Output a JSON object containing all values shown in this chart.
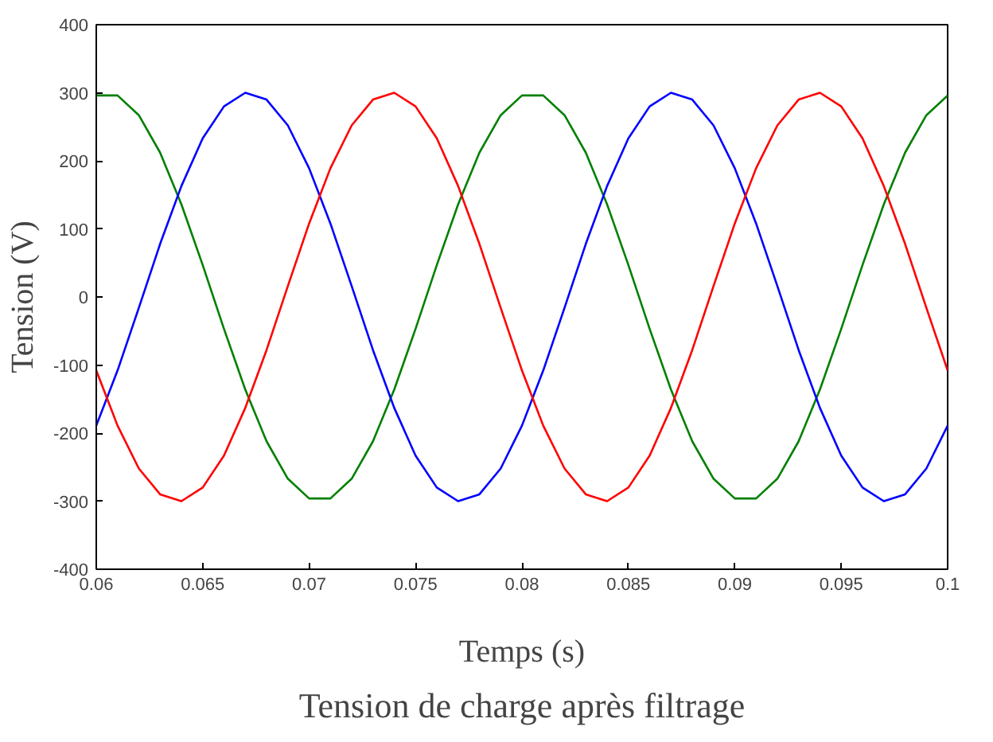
{
  "chart_data": {
    "type": "line",
    "title": "Tension de charge après filtrage",
    "xlabel": "Temps (s)",
    "ylabel": "Tension (V)",
    "x": [
      0.06,
      0.061,
      0.062,
      0.063,
      0.064,
      0.065,
      0.066,
      0.067,
      0.068,
      0.069,
      0.07,
      0.071,
      0.072,
      0.073,
      0.074,
      0.075,
      0.076,
      0.077,
      0.078,
      0.079,
      0.08,
      0.081,
      0.082,
      0.083,
      0.084,
      0.085,
      0.086,
      0.087,
      0.088,
      0.089,
      0.09,
      0.091,
      0.092,
      0.093,
      0.094,
      0.095,
      0.096,
      0.097,
      0.098,
      0.099,
      0.1
    ],
    "series": [
      {
        "color": "#008000",
        "values": [
          296,
          296,
          267,
          212,
          136,
          47,
          -47,
          -136,
          -212,
          -267,
          -296,
          -296,
          -267,
          -212,
          -136,
          -47,
          47,
          136,
          212,
          267,
          296,
          296,
          267,
          212,
          136,
          47,
          -47,
          -136,
          -212,
          -267,
          -296,
          -296,
          -267,
          -212,
          -136,
          -47,
          47,
          136,
          212,
          267,
          296
        ]
      },
      {
        "color": "#0000ff",
        "values": [
          -189,
          -108,
          -16,
          78,
          163,
          233,
          280,
          300,
          290,
          252,
          189,
          108,
          16,
          -78,
          -163,
          -233,
          -280,
          -300,
          -290,
          -252,
          -189,
          -108,
          -16,
          78,
          163,
          233,
          280,
          300,
          290,
          252,
          189,
          108,
          16,
          -78,
          -163,
          -233,
          -280,
          -300,
          -290,
          -252,
          -189
        ]
      },
      {
        "color": "#ff0000",
        "values": [
          -108,
          -189,
          -252,
          -290,
          -300,
          -280,
          -233,
          -163,
          -78,
          16,
          108,
          189,
          252,
          290,
          300,
          280,
          233,
          163,
          78,
          -16,
          -108,
          -189,
          -252,
          -290,
          -300,
          -280,
          -233,
          -163,
          -78,
          16,
          108,
          189,
          252,
          290,
          300,
          280,
          233,
          163,
          78,
          -16,
          -108
        ]
      }
    ],
    "xlim": [
      0.06,
      0.1
    ],
    "ylim": [
      -400,
      400
    ],
    "xticks": [
      0.06,
      0.065,
      0.07,
      0.075,
      0.08,
      0.085,
      0.09,
      0.095,
      0.1
    ],
    "yticks": [
      -400,
      -300,
      -200,
      -100,
      0,
      100,
      200,
      300,
      400
    ],
    "grid": false,
    "marker": "none",
    "line_style": "solid"
  }
}
